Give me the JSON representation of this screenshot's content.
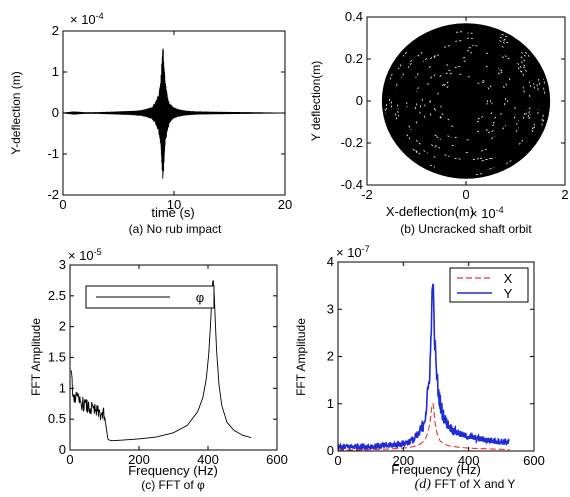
{
  "chart_data": [
    {
      "type": "line",
      "title": "",
      "caption": "(a) No rub impact",
      "xlabel": "time  (s)",
      "ylabel": "Y-deflection (m)",
      "exponent": "× 10",
      "exponent_power": "-4",
      "xlim": [
        0,
        20
      ],
      "ylim": [
        -2,
        2
      ],
      "xticks": [
        "0",
        "10",
        "20"
      ],
      "yticks": [
        "-2",
        "-1",
        "0",
        "1",
        "2"
      ],
      "series": [
        {
          "color": "#000000",
          "x": [
            0,
            1,
            2,
            3,
            4,
            5,
            6,
            7,
            7.5,
            8,
            8.3,
            8.6,
            8.8,
            9.0,
            9.2,
            9.4,
            9.6,
            9.9,
            10.3,
            11,
            12,
            14,
            17,
            20
          ],
          "envelope": [
            0.01,
            0.04,
            0.02,
            0.02,
            0.03,
            0.04,
            0.05,
            0.07,
            0.1,
            0.15,
            0.25,
            0.45,
            0.8,
            1.75,
            0.8,
            0.45,
            0.25,
            0.15,
            0.1,
            0.06,
            0.04,
            0.03,
            0.02,
            0.01
          ]
        }
      ]
    },
    {
      "type": "scatter",
      "title": "",
      "caption": "(b) Uncracked shaft orbit",
      "xlabel": "X-deflection(m)",
      "ylabel": "Y deflection(m)",
      "exponent": "× 10",
      "exponent_power": "-4",
      "xlim": [
        -2,
        2
      ],
      "ylim": [
        -0.4,
        0.4
      ],
      "xticks": [
        "-2",
        "0",
        "2"
      ],
      "yticks": [
        "-0.4",
        "-0.2",
        "0",
        "0.2",
        "0.4"
      ],
      "orbit": {
        "x_radius": 1.7,
        "y_radius": 0.37,
        "color": "#000000"
      }
    },
    {
      "type": "line",
      "title": "",
      "caption": "(c) FFT of  φ",
      "xlabel": "Frequency (Hz)",
      "ylabel": "FFT Amplitude",
      "exponent": "× 10",
      "exponent_power": "-5",
      "xlim": [
        0,
        600
      ],
      "ylim": [
        0,
        3
      ],
      "xticks": [
        "0",
        "200",
        "400",
        "600"
      ],
      "yticks": [
        "0",
        "0.5",
        "1",
        "1.5",
        "2",
        "2.5",
        "3"
      ],
      "legend_position": "top-left",
      "series": [
        {
          "name": "φ",
          "color": "#000000",
          "x": [
            3,
            10,
            20,
            30,
            40,
            50,
            60,
            70,
            80,
            90,
            100,
            110,
            120,
            150,
            200,
            250,
            300,
            340,
            370,
            385,
            395,
            402,
            407,
            411,
            413,
            415,
            418,
            421,
            425,
            432,
            440,
            455,
            475,
            500,
            525
          ],
          "values": [
            1.22,
            0.88,
            0.82,
            0.78,
            0.74,
            0.7,
            0.67,
            0.64,
            0.61,
            0.58,
            0.56,
            0.17,
            0.15,
            0.16,
            0.18,
            0.21,
            0.28,
            0.4,
            0.62,
            0.85,
            1.15,
            1.55,
            2.0,
            2.45,
            2.7,
            2.78,
            2.55,
            2.1,
            1.6,
            1.05,
            0.72,
            0.45,
            0.32,
            0.24,
            0.2
          ],
          "noise_band": {
            "x_start": 3,
            "x_end": 100,
            "amplitude": 0.12
          }
        }
      ]
    },
    {
      "type": "line",
      "title": "",
      "caption": "FFT of X and Y",
      "caption_prefix": "(d)",
      "xlabel": "Frequency (Hz)",
      "ylabel": "FFT Amplitude",
      "exponent": "× 10",
      "exponent_power": "-7",
      "xlim": [
        0,
        600
      ],
      "ylim": [
        0,
        4
      ],
      "xticks": [
        "0",
        "200",
        "400",
        "600"
      ],
      "yticks": [
        "0",
        "1",
        "2",
        "3",
        "4"
      ],
      "legend_position": "top-right",
      "series": [
        {
          "name": "X",
          "color": "#e8323c",
          "style": "dashed",
          "x": [
            0,
            50,
            100,
            150,
            200,
            230,
            250,
            265,
            275,
            282,
            287,
            290,
            293,
            297,
            303,
            312,
            325,
            345,
            370,
            400,
            440,
            480,
            525
          ],
          "values": [
            0.02,
            0.02,
            0.03,
            0.04,
            0.06,
            0.09,
            0.14,
            0.22,
            0.38,
            0.62,
            0.95,
            1.05,
            0.9,
            0.6,
            0.38,
            0.22,
            0.14,
            0.1,
            0.08,
            0.06,
            0.05,
            0.04,
            0.03
          ]
        },
        {
          "name": "Y",
          "color": "#1f2bd6",
          "style": "solid",
          "x": [
            0,
            50,
            100,
            150,
            200,
            225,
            245,
            258,
            268,
            276,
            282,
            286,
            288,
            290,
            292,
            295,
            300,
            307,
            316,
            330,
            350,
            380,
            420,
            470,
            525
          ],
          "values": [
            0.08,
            0.09,
            0.1,
            0.11,
            0.16,
            0.22,
            0.32,
            0.5,
            0.8,
            1.25,
            1.85,
            2.6,
            3.3,
            3.88,
            3.2,
            2.5,
            1.8,
            1.25,
            0.9,
            0.62,
            0.45,
            0.34,
            0.27,
            0.22,
            0.19
          ],
          "noise_amplitude": 0.07
        }
      ]
    }
  ]
}
